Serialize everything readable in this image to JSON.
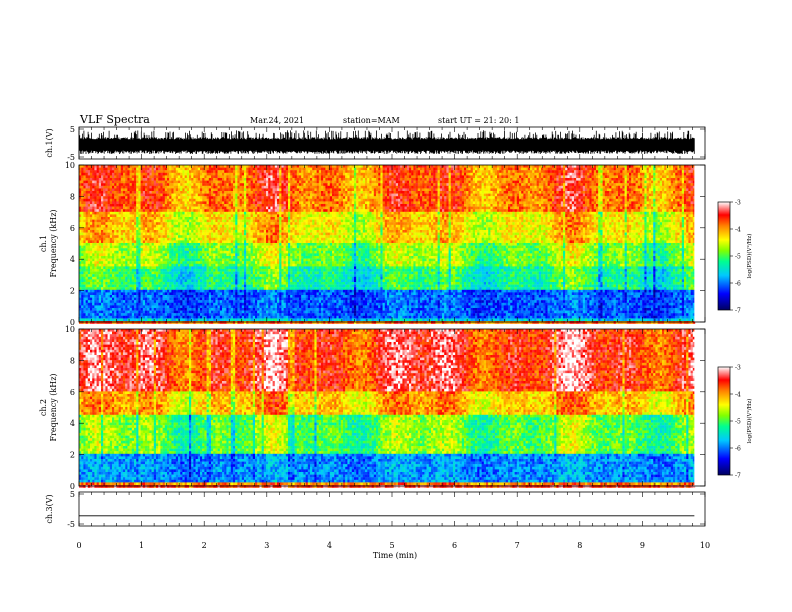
{
  "header": {
    "title": "VLF Spectra",
    "date": "Mar.24, 2021",
    "station": "station=MAM",
    "start": "start  UT =   21: 20: 1"
  },
  "chart_data": [
    {
      "type": "line",
      "title": "",
      "ylabel": "ch.1(V)",
      "xlim": [
        0,
        10
      ],
      "ylim": [
        -5,
        5
      ],
      "yticks": [
        "5",
        "-5"
      ],
      "description_values": {
        "trace_min": -4.0,
        "trace_max": 4.0
      },
      "series": [
        {
          "values_range": [
            -4.0,
            4.0
          ]
        }
      ]
    },
    {
      "type": "heatmap",
      "ylabel": "ch.1\nFrequency (kHz)",
      "ylabel_line1": "ch.1",
      "ylabel_line2": "Frequency (kHz)",
      "xlim": [
        0,
        10
      ],
      "ylim": [
        0,
        10
      ],
      "yticks": [
        "0",
        "2",
        "4",
        "6",
        "8",
        "10"
      ],
      "data_end_min": 9.83,
      "colorbar": {
        "label": "log(PSD)(V²/Hz)",
        "range": [
          -7,
          -3
        ],
        "ticks": [
          "-3",
          "-4",
          "-5",
          "-6",
          "-7"
        ]
      },
      "bands": [
        {
          "f_from": 0.0,
          "f_to": 0.3,
          "level": -5.6
        },
        {
          "f_from": 0.3,
          "f_to": 2.0,
          "level": -6.1
        },
        {
          "f_from": 2.0,
          "f_to": 3.5,
          "level": -5.2
        },
        {
          "f_from": 3.5,
          "f_to": 5.0,
          "level": -4.8
        },
        {
          "f_from": 5.0,
          "f_to": 7.0,
          "level": -4.3
        },
        {
          "f_from": 7.0,
          "f_to": 10.0,
          "level": -3.8
        }
      ]
    },
    {
      "type": "heatmap",
      "ylabel_line1": "ch.2",
      "ylabel_line2": "Frequency (kHz)",
      "xlim": [
        0,
        10
      ],
      "ylim": [
        0,
        10
      ],
      "yticks": [
        "0",
        "2",
        "4",
        "6",
        "8",
        "10"
      ],
      "data_end_min": 9.83,
      "colorbar": {
        "label": "log(PSD)(V²/Hz)",
        "range": [
          -7,
          -3
        ],
        "ticks": [
          "-3",
          "-4",
          "-5",
          "-6",
          "-7"
        ]
      },
      "bands": [
        {
          "f_from": 0.0,
          "f_to": 0.3,
          "level": -3.9
        },
        {
          "f_from": 0.3,
          "f_to": 2.0,
          "level": -5.9
        },
        {
          "f_from": 2.0,
          "f_to": 4.5,
          "level": -4.9
        },
        {
          "f_from": 4.5,
          "f_to": 6.0,
          "level": -4.1
        },
        {
          "f_from": 6.0,
          "f_to": 10.0,
          "level": -3.5
        }
      ]
    },
    {
      "type": "line",
      "ylabel": "ch.3(V)",
      "xlim": [
        0,
        10
      ],
      "ylim": [
        -5,
        5
      ],
      "yticks": [
        "5",
        "-5"
      ],
      "series": [
        {
          "x": [
            0,
            9.83
          ],
          "y": [
            -2,
            -2
          ]
        }
      ]
    }
  ],
  "xaxis": {
    "label": "Time (min)",
    "ticks": [
      "0",
      "1",
      "2",
      "3",
      "4",
      "5",
      "6",
      "7",
      "8",
      "9",
      "10"
    ]
  },
  "colors": {
    "axis": "#000000",
    "colormap": [
      "#000080",
      "#0000ff",
      "#00c8ff",
      "#00ff80",
      "#80ff00",
      "#ffff00",
      "#ff8000",
      "#ff0000",
      "#ffffff"
    ]
  }
}
